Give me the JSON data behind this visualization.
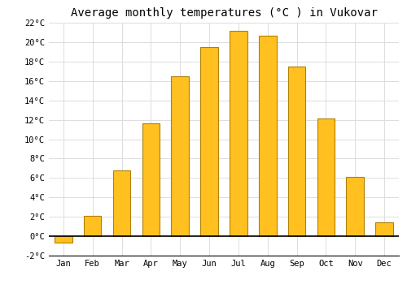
{
  "title": "Average monthly temperatures (°C ) in Vukovar",
  "months": [
    "Jan",
    "Feb",
    "Mar",
    "Apr",
    "May",
    "Jun",
    "Jul",
    "Aug",
    "Sep",
    "Oct",
    "Nov",
    "Dec"
  ],
  "values": [
    -0.7,
    2.1,
    6.8,
    11.6,
    16.5,
    19.5,
    21.2,
    20.7,
    17.5,
    12.1,
    6.1,
    1.4
  ],
  "bar_color": "#FFC020",
  "bar_edge_color": "#B08000",
  "background_color": "#FFFFFF",
  "grid_color": "#DDDDDD",
  "ylim": [
    -2,
    22
  ],
  "yticks": [
    -2,
    0,
    2,
    4,
    6,
    8,
    10,
    12,
    14,
    16,
    18,
    20,
    22
  ],
  "title_fontsize": 10,
  "tick_fontsize": 7.5,
  "font_family": "monospace",
  "bar_width": 0.6
}
